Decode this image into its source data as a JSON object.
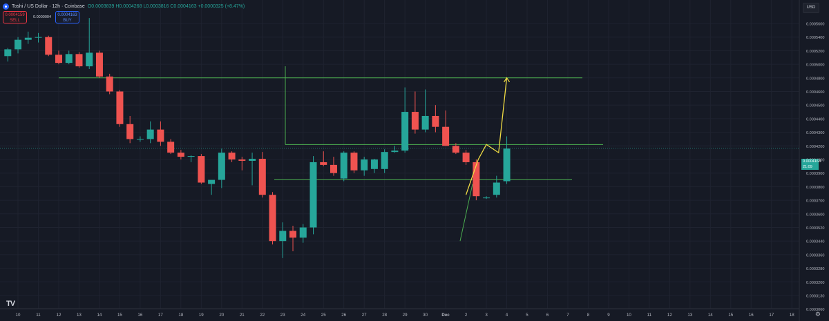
{
  "header": {
    "title": "Toshi / US Dollar · 12h · Coinbase",
    "open": "O0.0003839",
    "high": "H0.0004268",
    "low": "L0.0003816",
    "close": "C0.0004163",
    "change": "+0.0000325 (+8.47%)"
  },
  "trade": {
    "sell_price": "0.0004159",
    "sell_label": "SELL",
    "spread": "0.0000004",
    "buy_price": "0.0004163",
    "buy_label": "BUY"
  },
  "currency": "USD",
  "price_tag": {
    "price": "0.0004163",
    "countdown": "21:09"
  },
  "colors": {
    "up": "#26a69a",
    "down": "#ef5350",
    "line": "#4caf50",
    "projection": "#f0dc44",
    "background": "#161a25"
  },
  "chart_data": {
    "type": "candlestick",
    "x_labels": [
      "10",
      "11",
      "12",
      "13",
      "14",
      "15",
      "16",
      "17",
      "18",
      "19",
      "20",
      "21",
      "22",
      "23",
      "24",
      "25",
      "26",
      "27",
      "28",
      "29",
      "30",
      "Dec",
      "2",
      "3",
      "4",
      "5",
      "6",
      "7",
      "8",
      "9",
      "10",
      "11",
      "12",
      "13",
      "14",
      "15",
      "16",
      "17",
      "18"
    ],
    "y_ticks": [
      "0.0005600",
      "0.0005400",
      "0.0005200",
      "0.0005000",
      "0.0004800",
      "0.0004600",
      "0.0004500",
      "0.0004400",
      "0.0004300",
      "0.0004200",
      "0.0004000",
      "0.0003900",
      "0.0003800",
      "0.0003700",
      "0.0003600",
      "0.0003520",
      "0.0003440",
      "0.0003360",
      "0.0003280",
      "0.0003200",
      "0.0003130",
      "0.0003060"
    ],
    "candles": [
      {
        "o": 0.000512,
        "h": 0.000524,
        "l": 0.000504,
        "c": 0.000522
      },
      {
        "o": 0.000522,
        "h": 0.00054,
        "l": 0.000516,
        "c": 0.000536
      },
      {
        "o": 0.000536,
        "h": 0.000548,
        "l": 0.00053,
        "c": 0.000539
      },
      {
        "o": 0.000539,
        "h": 0.000546,
        "l": 0.000532,
        "c": 0.00054
      },
      {
        "o": 0.00054,
        "h": 0.000542,
        "l": 0.000512,
        "c": 0.000514
      },
      {
        "o": 0.000514,
        "h": 0.00052,
        "l": 0.0005,
        "c": 0.000502
      },
      {
        "o": 0.000502,
        "h": 0.00052,
        "l": 0.0005,
        "c": 0.000515
      },
      {
        "o": 0.000515,
        "h": 0.000518,
        "l": 0.000495,
        "c": 0.000497
      },
      {
        "o": 0.000497,
        "h": 0.000568,
        "l": 0.000493,
        "c": 0.000517
      },
      {
        "o": 0.000517,
        "h": 0.00052,
        "l": 0.00048,
        "c": 0.000482
      },
      {
        "o": 0.000482,
        "h": 0.000486,
        "l": 0.000458,
        "c": 0.00046
      },
      {
        "o": 0.00046,
        "h": 0.000462,
        "l": 0.000434,
        "c": 0.000436
      },
      {
        "o": 0.000436,
        "h": 0.000442,
        "l": 0.000422,
        "c": 0.000425
      },
      {
        "o": 0.000425,
        "h": 0.000427,
        "l": 0.000423,
        "c": 0.000425
      },
      {
        "o": 0.000425,
        "h": 0.000438,
        "l": 0.000422,
        "c": 0.000432
      },
      {
        "o": 0.000432,
        "h": 0.000438,
        "l": 0.00042,
        "c": 0.000423
      },
      {
        "o": 0.000423,
        "h": 0.000425,
        "l": 0.000408,
        "c": 0.00041
      },
      {
        "o": 0.00041,
        "h": 0.000414,
        "l": 0.0004,
        "c": 0.000404
      },
      {
        "o": 0.000404,
        "h": 0.000406,
        "l": 0.000398,
        "c": 0.000405
      },
      {
        "o": 0.000405,
        "h": 0.000408,
        "l": 0.000382,
        "c": 0.000383
      },
      {
        "o": 0.000382,
        "h": 0.000384,
        "l": 0.000374,
        "c": 0.000385
      },
      {
        "o": 0.000385,
        "h": 0.000416,
        "l": 0.000379,
        "c": 0.00041
      },
      {
        "o": 0.00041,
        "h": 0.000412,
        "l": 0.000398,
        "c": 0.0004
      },
      {
        "o": 0.0004,
        "h": 0.000404,
        "l": 0.000392,
        "c": 0.000399
      },
      {
        "o": 0.000399,
        "h": 0.00041,
        "l": 0.000381,
        "c": 0.000401
      },
      {
        "o": 0.000401,
        "h": 0.000411,
        "l": 0.000372,
        "c": 0.000374
      },
      {
        "o": 0.000374,
        "h": 0.000376,
        "l": 0.000342,
        "c": 0.000344
      },
      {
        "o": 0.000344,
        "h": 0.000355,
        "l": 0.000334,
        "c": 0.00035
      },
      {
        "o": 0.00035,
        "h": 0.000353,
        "l": 0.000338,
        "c": 0.000346
      },
      {
        "o": 0.000346,
        "h": 0.000354,
        "l": 0.000343,
        "c": 0.000352
      },
      {
        "o": 0.000352,
        "h": 0.000405,
        "l": 0.000348,
        "c": 0.000398
      },
      {
        "o": 0.000398,
        "h": 0.000412,
        "l": 0.000395,
        "c": 0.000396
      },
      {
        "o": 0.000396,
        "h": 0.000404,
        "l": 0.000388,
        "c": 0.00039
      },
      {
        "o": 0.000386,
        "h": 0.000412,
        "l": 0.000384,
        "c": 0.00041
      },
      {
        "o": 0.00041,
        "h": 0.000412,
        "l": 0.00039,
        "c": 0.000392
      },
      {
        "o": 0.000392,
        "h": 0.000404,
        "l": 0.000388,
        "c": 0.0004
      },
      {
        "o": 0.000393,
        "h": 0.000401,
        "l": 0.00039,
        "c": 0.0004
      },
      {
        "o": 0.000393,
        "h": 0.000415,
        "l": 0.00039,
        "c": 0.000411
      },
      {
        "o": 0.000411,
        "h": 0.00042,
        "l": 0.00041,
        "c": 0.000413
      },
      {
        "o": 0.000413,
        "h": 0.000466,
        "l": 0.00041,
        "c": 0.000445
      },
      {
        "o": 0.000445,
        "h": 0.00046,
        "l": 0.000429,
        "c": 0.000432
      },
      {
        "o": 0.000432,
        "h": 0.000463,
        "l": 0.00043,
        "c": 0.000442
      },
      {
        "o": 0.000442,
        "h": 0.00045,
        "l": 0.00043,
        "c": 0.000434
      },
      {
        "o": 0.000434,
        "h": 0.000446,
        "l": 0.00042,
        "c": 0.00042
      },
      {
        "o": 0.00042,
        "h": 0.000422,
        "l": 0.000408,
        "c": 0.00041
      },
      {
        "o": 0.00041,
        "h": 0.000414,
        "l": 0.000396,
        "c": 0.000398
      },
      {
        "o": 0.000398,
        "h": 0.0004,
        "l": 0.00037,
        "c": 0.000373
      },
      {
        "o": 0.000372,
        "h": 0.000373,
        "l": 0.000371,
        "c": 0.000372
      },
      {
        "o": 0.000374,
        "h": 0.000388,
        "l": 0.000372,
        "c": 0.000383
      },
      {
        "o": 0.000384,
        "h": 0.000427,
        "l": 0.000382,
        "c": 0.000416
      }
    ],
    "horizontal_lines": [
      0.00048,
      0.000421,
      0.000385
    ],
    "projection": [
      [
        "2",
        0.000374
      ],
      [
        "2.6",
        0.0004
      ],
      [
        "3",
        0.000421
      ],
      [
        "3.6",
        0.00041
      ],
      [
        "4",
        0.00048
      ]
    ]
  }
}
